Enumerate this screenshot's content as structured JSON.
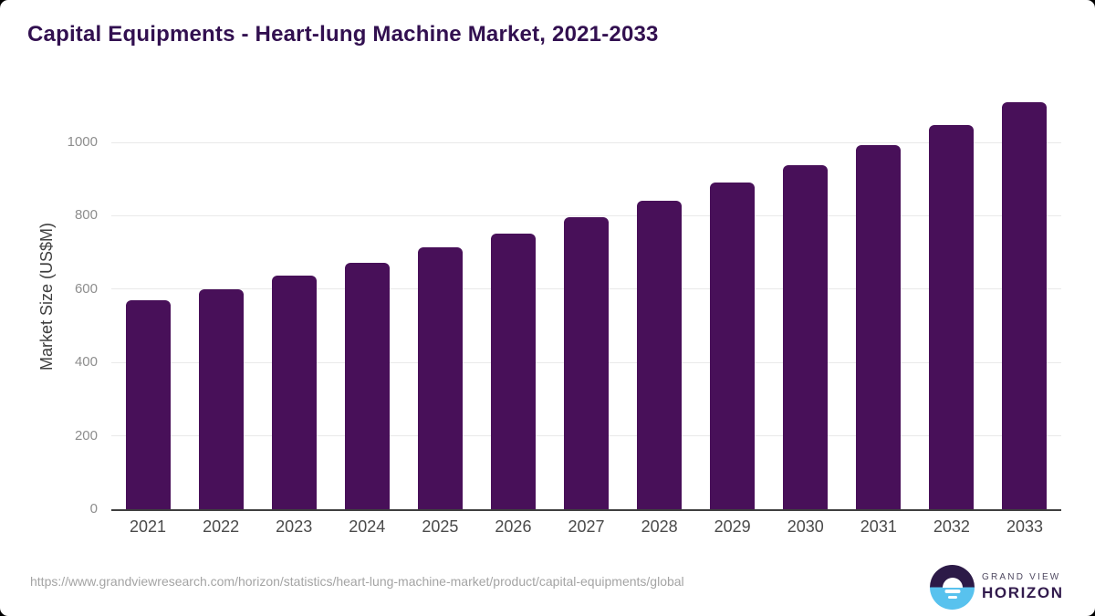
{
  "chart_data": {
    "type": "bar",
    "title": "Capital Equipments - Heart-lung Machine Market, 2021-2033",
    "categories": [
      "2021",
      "2022",
      "2023",
      "2024",
      "2025",
      "2026",
      "2027",
      "2028",
      "2029",
      "2030",
      "2031",
      "2032",
      "2033"
    ],
    "values": [
      570,
      600,
      636,
      671,
      713,
      752,
      795,
      841,
      890,
      938,
      993,
      1048,
      1110
    ],
    "xlabel": "",
    "ylabel": "Market Size (US$M)",
    "yticks": [
      0,
      200,
      400,
      600,
      800,
      1000
    ],
    "ylim": [
      0,
      1140
    ],
    "grid": true,
    "legend": false,
    "bar_color": "#481059"
  },
  "footer": {
    "source_url": "https://www.grandviewresearch.com/horizon/statistics/heart-lung-machine-market/product/capital-equipments/global",
    "brand_top": "GRAND VIEW",
    "brand_bottom": "HORIZON"
  },
  "colors": {
    "title_text": "#321050",
    "bar": "#481059",
    "gridline": "#e9e9e9",
    "axis_line": "#3f3f3f",
    "logo_navy": "#2c1a47",
    "logo_blue": "#58c2ee"
  }
}
